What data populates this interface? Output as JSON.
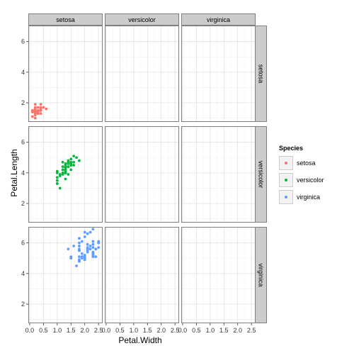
{
  "chart_data": {
    "type": "scatter",
    "facet": "grid",
    "col_strips": [
      "setosa",
      "versicolor",
      "virginica"
    ],
    "row_strips": [
      "setosa",
      "versicolor",
      "virginica"
    ],
    "xlabel": "Petal.Width",
    "ylabel": "Petal.Length",
    "xlim": [
      -0.05,
      2.65
    ],
    "ylim": [
      0.75,
      7.05
    ],
    "x_ticks": [
      0.0,
      0.5,
      1.0,
      1.5,
      2.0,
      2.5
    ],
    "x_tick_labels": [
      "0.0",
      "0.5",
      "1.0",
      "1.5",
      "2.0",
      "2.5"
    ],
    "y_ticks": [
      2,
      4,
      6
    ],
    "y_tick_labels": [
      "2",
      "4",
      "6"
    ],
    "grid": true,
    "legend": {
      "title": "Species",
      "position": "right",
      "entries": [
        "setosa",
        "versicolor",
        "virginica"
      ]
    },
    "series": [
      {
        "name": "setosa",
        "color": "#F8766D",
        "row": 0,
        "col": 0,
        "points": [
          [
            0.2,
            1.4
          ],
          [
            0.2,
            1.4
          ],
          [
            0.2,
            1.3
          ],
          [
            0.2,
            1.5
          ],
          [
            0.2,
            1.4
          ],
          [
            0.4,
            1.7
          ],
          [
            0.3,
            1.4
          ],
          [
            0.2,
            1.5
          ],
          [
            0.2,
            1.4
          ],
          [
            0.1,
            1.5
          ],
          [
            0.2,
            1.5
          ],
          [
            0.2,
            1.6
          ],
          [
            0.1,
            1.4
          ],
          [
            0.1,
            1.1
          ],
          [
            0.2,
            1.2
          ],
          [
            0.4,
            1.5
          ],
          [
            0.4,
            1.3
          ],
          [
            0.3,
            1.4
          ],
          [
            0.3,
            1.7
          ],
          [
            0.3,
            1.5
          ],
          [
            0.2,
            1.7
          ],
          [
            0.4,
            1.5
          ],
          [
            0.2,
            1.0
          ],
          [
            0.5,
            1.7
          ],
          [
            0.2,
            1.9
          ],
          [
            0.2,
            1.6
          ],
          [
            0.4,
            1.6
          ],
          [
            0.2,
            1.5
          ],
          [
            0.2,
            1.4
          ],
          [
            0.2,
            1.6
          ],
          [
            0.2,
            1.6
          ],
          [
            0.4,
            1.5
          ],
          [
            0.1,
            1.5
          ],
          [
            0.2,
            1.4
          ],
          [
            0.2,
            1.5
          ],
          [
            0.2,
            1.2
          ],
          [
            0.2,
            1.3
          ],
          [
            0.1,
            1.4
          ],
          [
            0.2,
            1.3
          ],
          [
            0.2,
            1.5
          ],
          [
            0.3,
            1.3
          ],
          [
            0.3,
            1.3
          ],
          [
            0.2,
            1.3
          ],
          [
            0.6,
            1.6
          ],
          [
            0.4,
            1.9
          ],
          [
            0.3,
            1.4
          ],
          [
            0.2,
            1.6
          ],
          [
            0.2,
            1.4
          ],
          [
            0.2,
            1.5
          ],
          [
            0.2,
            1.4
          ]
        ]
      },
      {
        "name": "versicolor",
        "color": "#00BA38",
        "row": 1,
        "col": 0,
        "points": [
          [
            1.4,
            4.7
          ],
          [
            1.5,
            4.5
          ],
          [
            1.5,
            4.9
          ],
          [
            1.3,
            4.0
          ],
          [
            1.5,
            4.6
          ],
          [
            1.3,
            4.5
          ],
          [
            1.6,
            4.7
          ],
          [
            1.0,
            3.3
          ],
          [
            1.3,
            4.6
          ],
          [
            1.4,
            3.9
          ],
          [
            1.0,
            3.5
          ],
          [
            1.5,
            4.2
          ],
          [
            1.0,
            4.0
          ],
          [
            1.4,
            4.7
          ],
          [
            1.3,
            3.6
          ],
          [
            1.4,
            4.4
          ],
          [
            1.5,
            4.5
          ],
          [
            1.0,
            4.1
          ],
          [
            1.5,
            4.5
          ],
          [
            1.1,
            3.9
          ],
          [
            1.8,
            4.8
          ],
          [
            1.3,
            4.0
          ],
          [
            1.5,
            4.9
          ],
          [
            1.2,
            4.7
          ],
          [
            1.3,
            4.3
          ],
          [
            1.4,
            4.4
          ],
          [
            1.4,
            4.8
          ],
          [
            1.7,
            5.0
          ],
          [
            1.5,
            4.5
          ],
          [
            1.0,
            3.5
          ],
          [
            1.1,
            3.8
          ],
          [
            1.0,
            3.7
          ],
          [
            1.2,
            3.9
          ],
          [
            1.6,
            5.1
          ],
          [
            1.5,
            4.5
          ],
          [
            1.6,
            4.5
          ],
          [
            1.5,
            4.7
          ],
          [
            1.3,
            4.4
          ],
          [
            1.3,
            4.1
          ],
          [
            1.3,
            4.0
          ],
          [
            1.2,
            4.4
          ],
          [
            1.4,
            4.6
          ],
          [
            1.2,
            4.0
          ],
          [
            1.0,
            3.3
          ],
          [
            1.3,
            4.2
          ],
          [
            1.2,
            4.2
          ],
          [
            1.3,
            4.2
          ],
          [
            1.3,
            4.3
          ],
          [
            1.1,
            3.0
          ],
          [
            1.3,
            4.1
          ]
        ]
      },
      {
        "name": "virginica",
        "color": "#619CFF",
        "row": 2,
        "col": 0,
        "points": [
          [
            2.5,
            6.0
          ],
          [
            1.9,
            5.1
          ],
          [
            2.1,
            5.9
          ],
          [
            1.8,
            5.6
          ],
          [
            2.2,
            5.8
          ],
          [
            2.1,
            6.6
          ],
          [
            1.7,
            4.5
          ],
          [
            1.8,
            6.3
          ],
          [
            1.8,
            5.8
          ],
          [
            2.5,
            6.1
          ],
          [
            2.0,
            5.1
          ],
          [
            1.9,
            5.3
          ],
          [
            2.1,
            5.5
          ],
          [
            2.0,
            5.0
          ],
          [
            2.4,
            5.1
          ],
          [
            2.3,
            5.3
          ],
          [
            1.8,
            5.5
          ],
          [
            2.2,
            6.7
          ],
          [
            2.3,
            6.9
          ],
          [
            1.5,
            5.0
          ],
          [
            2.3,
            5.7
          ],
          [
            2.0,
            4.9
          ],
          [
            2.0,
            6.7
          ],
          [
            1.8,
            4.9
          ],
          [
            2.1,
            5.7
          ],
          [
            1.8,
            6.0
          ],
          [
            1.8,
            4.8
          ],
          [
            1.8,
            4.9
          ],
          [
            2.1,
            5.6
          ],
          [
            1.6,
            5.8
          ],
          [
            1.9,
            6.1
          ],
          [
            2.0,
            6.4
          ],
          [
            2.2,
            5.6
          ],
          [
            1.5,
            5.1
          ],
          [
            1.4,
            5.6
          ],
          [
            2.3,
            6.1
          ],
          [
            2.4,
            5.6
          ],
          [
            1.8,
            5.5
          ],
          [
            1.8,
            4.8
          ],
          [
            2.1,
            5.4
          ],
          [
            2.4,
            5.6
          ],
          [
            2.3,
            5.1
          ],
          [
            1.9,
            5.1
          ],
          [
            2.3,
            5.9
          ],
          [
            2.5,
            5.7
          ],
          [
            2.3,
            5.2
          ],
          [
            1.9,
            5.0
          ],
          [
            2.0,
            5.2
          ],
          [
            2.3,
            5.4
          ],
          [
            1.8,
            5.1
          ]
        ]
      }
    ]
  }
}
